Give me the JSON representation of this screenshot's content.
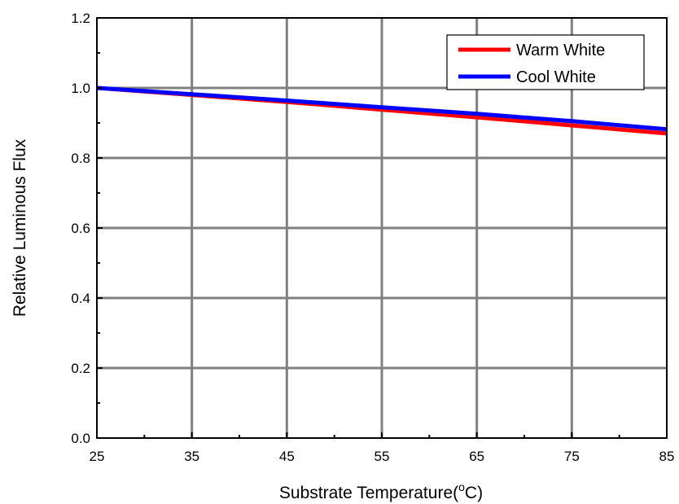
{
  "chart_data": {
    "type": "line",
    "title": "",
    "xlabel": "Substrate Temperature(",
    "xlabel_unit_sup": "o",
    "xlabel_unit_tail": "C)",
    "ylabel": "Relative Luminous Flux",
    "xlim": [
      25,
      85
    ],
    "ylim": [
      0,
      1.2
    ],
    "x_ticks": [
      25,
      35,
      45,
      55,
      65,
      75,
      85
    ],
    "y_ticks": [
      0.0,
      0.2,
      0.4,
      0.6,
      0.8,
      1.0,
      1.2
    ],
    "x_tick_labels": [
      "25",
      "35",
      "45",
      "55",
      "65",
      "75",
      "85"
    ],
    "y_tick_labels": [
      "0.0",
      "0.2",
      "0.4",
      "0.6",
      "0.8",
      "1.0",
      "1.2"
    ],
    "grid": true,
    "legend_position": "top-right",
    "series": [
      {
        "name": "Warm White",
        "color": "#ff0000",
        "x": [
          25,
          35,
          45,
          55,
          65,
          75,
          85
        ],
        "y": [
          1.0,
          0.98,
          0.96,
          0.938,
          0.916,
          0.893,
          0.87
        ]
      },
      {
        "name": "Cool White",
        "color": "#0000ff",
        "x": [
          25,
          35,
          45,
          55,
          65,
          75,
          85
        ],
        "y": [
          1.0,
          0.982,
          0.964,
          0.945,
          0.926,
          0.905,
          0.882
        ]
      }
    ]
  }
}
